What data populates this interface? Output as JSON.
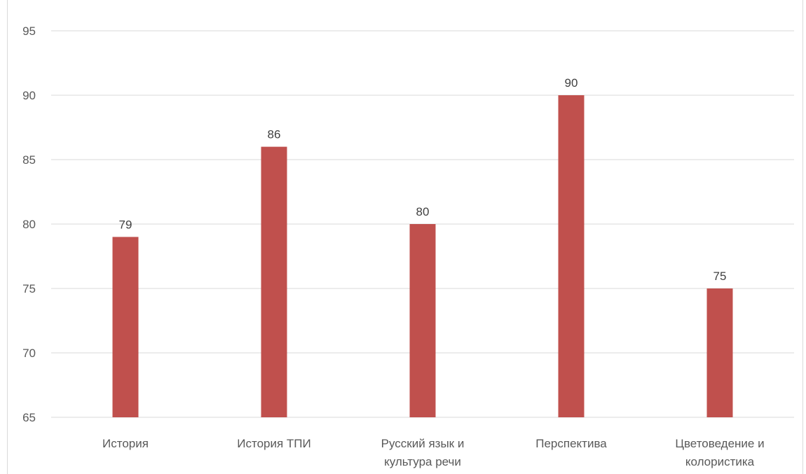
{
  "chart_data": {
    "type": "bar",
    "title": "",
    "xlabel": "",
    "ylabel": "",
    "categories": [
      [
        "История"
      ],
      [
        "История ТПИ"
      ],
      [
        "Русский язык и",
        "культура речи"
      ],
      [
        "Перспектива"
      ],
      [
        "Цветоведение и",
        "колористика"
      ]
    ],
    "values": [
      79,
      86,
      80,
      90,
      75
    ],
    "ylim": [
      65,
      95
    ],
    "yticks": [
      65,
      70,
      75,
      80,
      85,
      90,
      95
    ],
    "grid": true,
    "legend": "none",
    "colors": {
      "bar": "#c0504d",
      "grid": "#d9d9d9"
    }
  }
}
